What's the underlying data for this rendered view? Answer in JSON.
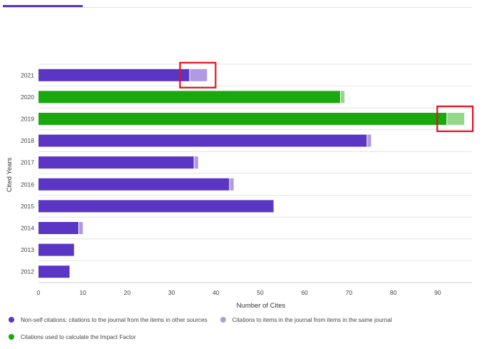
{
  "chart_data": {
    "type": "bar",
    "orientation": "horizontal",
    "stacked": true,
    "title": "",
    "xlabel": "Number of Cites",
    "ylabel": "Cited Years",
    "xlim": [
      0,
      100
    ],
    "xticks": [
      "0",
      "10",
      "20",
      "30",
      "40",
      "50",
      "60",
      "70",
      "80",
      "90"
    ],
    "categories": [
      "2021",
      "2020",
      "2019",
      "2018",
      "2017",
      "2016",
      "2015",
      "2014",
      "2013",
      "2012"
    ],
    "series": [
      {
        "name": "Non-self citations: citations to the journal from the items in other sources",
        "values": [
          34,
          68,
          92,
          74,
          35,
          43,
          53,
          9,
          8,
          7
        ]
      },
      {
        "name": "Citations to items in the journal from items in the same journal",
        "values": [
          4,
          1,
          4,
          1,
          1,
          1,
          0,
          1,
          0,
          0
        ]
      }
    ],
    "impact_factor_years": [
      "2020",
      "2019"
    ],
    "highlight_boxes": [
      "2021",
      "2019"
    ],
    "legend": [
      {
        "label": "Non-self citations: citations to the journal from the items in other sources",
        "color": "#5b35c4"
      },
      {
        "label": "Citations to items in the journal from items in the same journal",
        "color": "#b09ae3"
      },
      {
        "label": "Citations used to calculate the Impact Factor",
        "color": "#19a80e"
      }
    ],
    "legend_position": "bottom",
    "grid": true,
    "colors": {
      "nonself": "#5b35c4",
      "self": "#b09ae3",
      "if_nonself": "#19a80e",
      "if_self": "#94d98a",
      "highlight": "#e0141e",
      "grid": "#e4e4e4",
      "axis_text": "#444444"
    }
  }
}
